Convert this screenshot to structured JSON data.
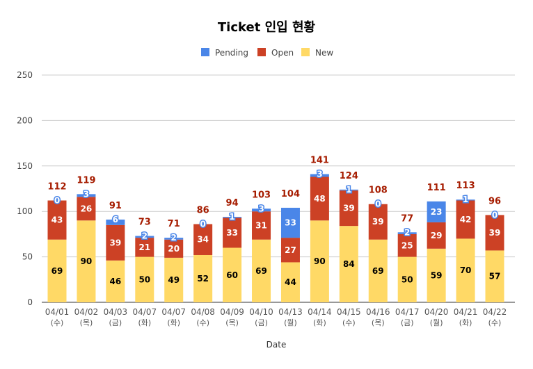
{
  "chart_data": {
    "type": "bar",
    "stacked": true,
    "title": "Ticket 인입 현황",
    "xlabel": "Date",
    "ylabel": "",
    "ylim": [
      0,
      250
    ],
    "yticks": [
      0,
      50,
      100,
      150,
      200,
      250
    ],
    "grid": true,
    "legend_position": "top",
    "categories": [
      [
        "04/01",
        "(수)"
      ],
      [
        "04/02",
        "(목)"
      ],
      [
        "04/03",
        "(금)"
      ],
      [
        "04/07",
        "(화)"
      ],
      [
        "04/07",
        "(화)"
      ],
      [
        "04/08",
        "(수)"
      ],
      [
        "04/09",
        "(목)"
      ],
      [
        "04/10",
        "(금)"
      ],
      [
        "04/13",
        "(월)"
      ],
      [
        "04/14",
        "(화)"
      ],
      [
        "04/15",
        "(수)"
      ],
      [
        "04/16",
        "(목)"
      ],
      [
        "04/17",
        "(금)"
      ],
      [
        "04/20",
        "(월)"
      ],
      [
        "04/21",
        "(화)"
      ],
      [
        "04/22",
        "(수)"
      ]
    ],
    "series": [
      {
        "name": "New",
        "color": "#ffd966",
        "values": [
          69,
          90,
          46,
          50,
          49,
          52,
          60,
          69,
          44,
          90,
          84,
          69,
          50,
          59,
          70,
          57
        ]
      },
      {
        "name": "Open",
        "color": "#cc4125",
        "values": [
          43,
          26,
          39,
          21,
          20,
          34,
          33,
          31,
          27,
          48,
          39,
          39,
          25,
          29,
          42,
          39
        ]
      },
      {
        "name": "Pending",
        "color": "#4a86e8",
        "values": [
          0,
          3,
          6,
          2,
          2,
          0,
          1,
          3,
          33,
          3,
          1,
          0,
          2,
          23,
          1,
          0
        ]
      }
    ],
    "legend_order": [
      "Pending",
      "Open",
      "New"
    ],
    "totals": [
      112,
      119,
      91,
      73,
      71,
      86,
      94,
      103,
      104,
      141,
      124,
      108,
      77,
      111,
      113,
      96
    ],
    "total_label_color": "#a61c00"
  }
}
